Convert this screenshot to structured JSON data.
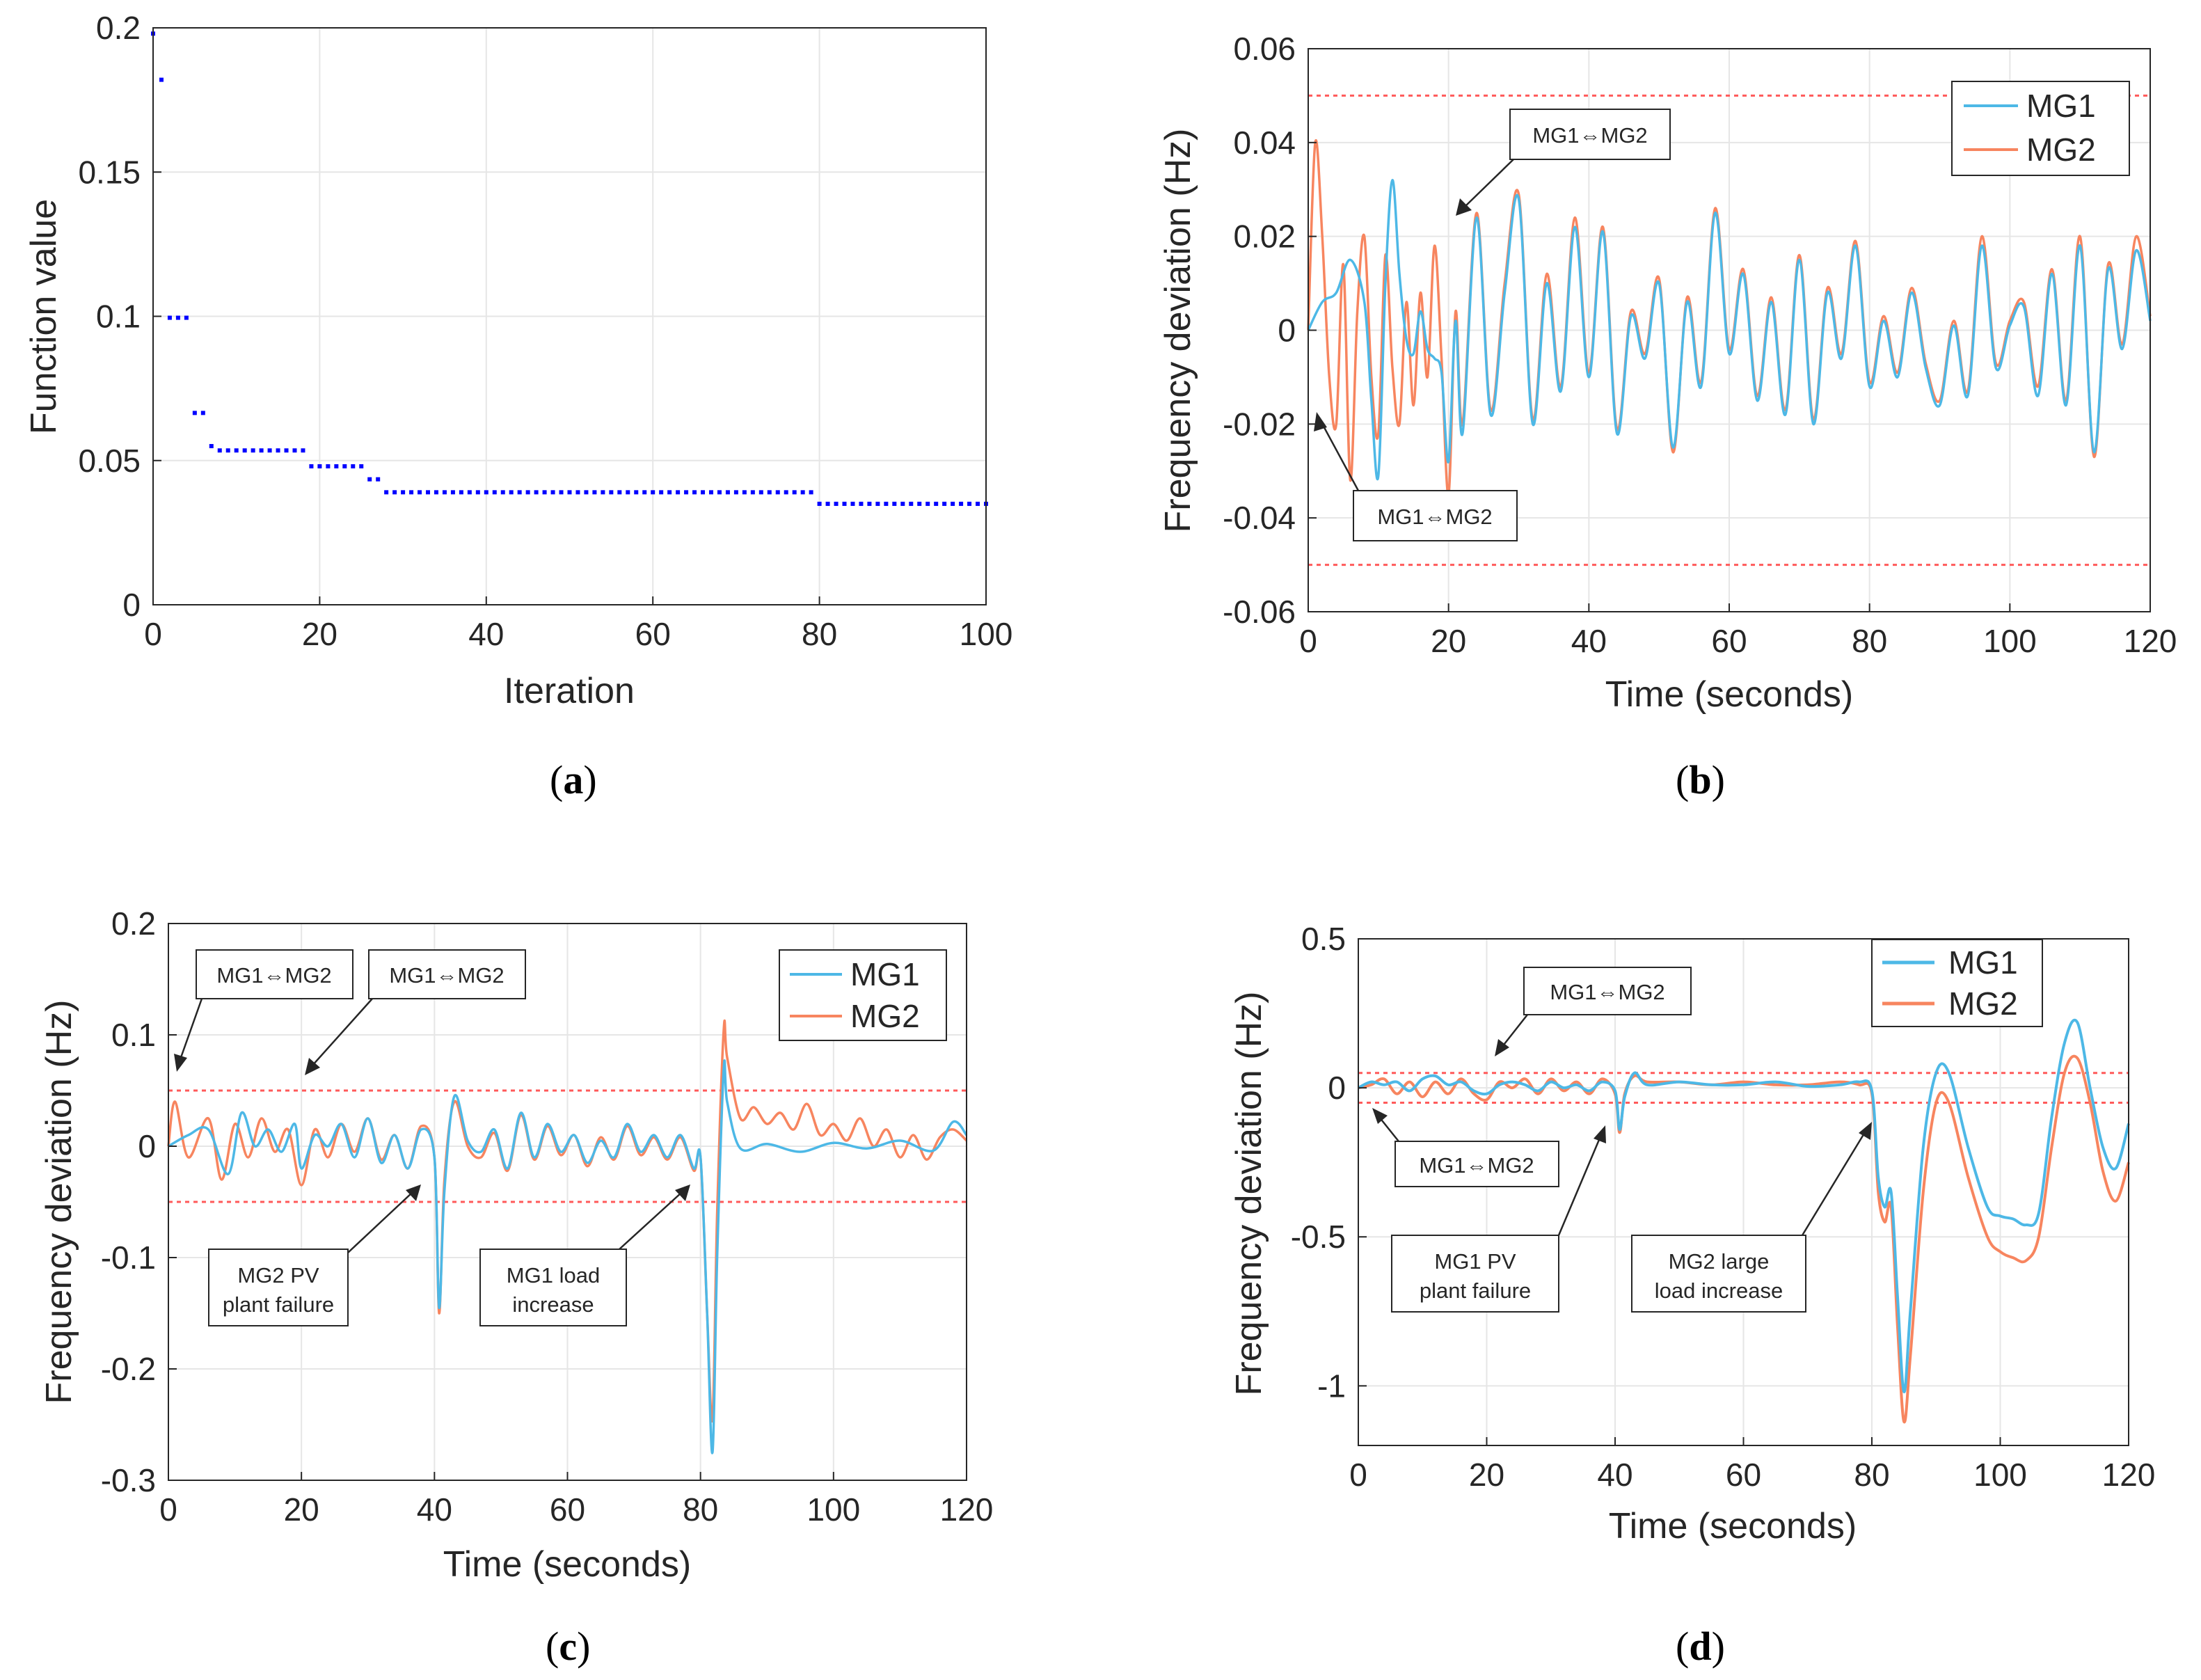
{
  "colors": {
    "mg1": "#4db8e6",
    "mg2": "#f7855f",
    "points": "#0000ff",
    "limit": "#ff5a5a",
    "grid": "#e6e6e6",
    "axis": "#262626"
  },
  "chart_data": [
    {
      "id": "a",
      "type": "scatter",
      "caption": "a",
      "xlabel": "Iteration",
      "ylabel": "Function value",
      "xlim": [
        0,
        100
      ],
      "ylim": [
        0,
        0.2
      ],
      "xticks": [
        "0",
        "20",
        "40",
        "60",
        "80",
        "100"
      ],
      "yticks": [
        "0",
        "0.05",
        "0.1",
        "0.15",
        "0.2"
      ],
      "grid": true,
      "segments": [
        {
          "from": 0,
          "to": 0,
          "value": 0.198
        },
        {
          "from": 1,
          "to": 1,
          "value": 0.182
        },
        {
          "from": 2,
          "to": 4,
          "value": 0.0995
        },
        {
          "from": 5,
          "to": 6,
          "value": 0.0665
        },
        {
          "from": 7,
          "to": 7,
          "value": 0.055
        },
        {
          "from": 8,
          "to": 18,
          "value": 0.0535
        },
        {
          "from": 19,
          "to": 25,
          "value": 0.048
        },
        {
          "from": 26,
          "to": 27,
          "value": 0.0435
        },
        {
          "from": 28,
          "to": 79,
          "value": 0.039
        },
        {
          "from": 80,
          "to": 100,
          "value": 0.035
        }
      ]
    },
    {
      "id": "b",
      "type": "line",
      "caption": "b",
      "xlabel": "Time (seconds)",
      "ylabel": "Frequency deviation (Hz)",
      "xlim": [
        0,
        120
      ],
      "ylim": [
        -0.06,
        0.06
      ],
      "xticks": [
        "0",
        "20",
        "40",
        "60",
        "80",
        "100",
        "120"
      ],
      "yticks": [
        "-0.06",
        "-0.04",
        "-0.02",
        "0",
        "0.02",
        "0.04",
        "0.06"
      ],
      "grid": true,
      "limits": [
        0.05,
        -0.05
      ],
      "legend": {
        "position": "top-right",
        "entries": [
          "MG1",
          "MG2"
        ]
      },
      "series": [
        {
          "name": "MG1",
          "x": [
            0,
            2,
            4,
            6,
            8,
            9,
            10,
            11,
            12,
            13,
            14,
            15,
            16,
            17,
            18,
            19,
            20,
            21,
            22,
            24,
            26,
            28,
            30,
            32,
            34,
            36,
            38,
            40,
            42,
            44,
            46,
            48,
            50,
            52,
            54,
            56,
            58,
            60,
            62,
            64,
            66,
            68,
            70,
            72,
            74,
            76,
            78,
            80,
            82,
            84,
            86,
            88,
            90,
            92,
            94,
            96,
            98,
            100,
            102,
            104,
            106,
            108,
            110,
            112,
            114,
            116,
            118,
            120
          ],
          "y": [
            0,
            0.006,
            0.008,
            0.015,
            0.006,
            -0.015,
            -0.031,
            0.01,
            0.032,
            0.012,
            -0.002,
            -0.005,
            0.004,
            -0.004,
            -0.006,
            -0.009,
            -0.028,
            0.002,
            -0.022,
            0.024,
            -0.018,
            0.008,
            0.028,
            -0.02,
            0.01,
            -0.013,
            0.022,
            -0.01,
            0.021,
            -0.022,
            0.003,
            -0.006,
            0.01,
            -0.025,
            0.006,
            -0.012,
            0.025,
            -0.005,
            0.012,
            -0.015,
            0.006,
            -0.018,
            0.015,
            -0.02,
            0.008,
            -0.006,
            0.018,
            -0.012,
            0.002,
            -0.01,
            0.008,
            -0.008,
            -0.016,
            0.001,
            -0.014,
            0.018,
            -0.008,
            0.001,
            0.005,
            -0.014,
            0.012,
            -0.016,
            0.018,
            -0.026,
            0.013,
            -0.004,
            0.017,
            0.002
          ]
        },
        {
          "name": "MG2",
          "x": [
            0,
            1,
            2,
            3,
            4,
            5,
            6,
            7,
            8,
            9,
            10,
            11,
            12,
            13,
            14,
            15,
            16,
            17,
            18,
            19,
            20,
            21,
            22,
            24,
            26,
            28,
            30,
            32,
            34,
            36,
            38,
            40,
            42,
            44,
            46,
            48,
            50,
            52,
            54,
            56,
            58,
            60,
            62,
            64,
            66,
            68,
            70,
            72,
            74,
            76,
            78,
            80,
            82,
            84,
            86,
            88,
            90,
            92,
            94,
            96,
            98,
            100,
            102,
            104,
            106,
            108,
            110,
            112,
            114,
            116,
            118,
            120
          ],
          "y": [
            0,
            0.04,
            0.02,
            -0.01,
            -0.02,
            0.014,
            -0.032,
            0.004,
            0.02,
            -0.01,
            -0.022,
            0.016,
            -0.008,
            -0.02,
            0.006,
            -0.016,
            0.008,
            -0.01,
            0.018,
            -0.006,
            -0.035,
            0.004,
            -0.02,
            0.025,
            -0.017,
            0.01,
            0.029,
            -0.019,
            0.012,
            -0.012,
            0.024,
            -0.009,
            0.022,
            -0.021,
            0.004,
            -0.005,
            0.011,
            -0.026,
            0.007,
            -0.011,
            0.026,
            -0.004,
            0.013,
            -0.014,
            0.007,
            -0.017,
            0.016,
            -0.019,
            0.009,
            -0.005,
            0.019,
            -0.011,
            0.003,
            -0.009,
            0.009,
            -0.007,
            -0.015,
            0.002,
            -0.013,
            0.02,
            -0.007,
            0.002,
            0.006,
            -0.012,
            0.013,
            -0.015,
            0.02,
            -0.027,
            0.014,
            -0.003,
            0.02,
            0.003
          ]
        }
      ],
      "annotations": [
        "MG1⇔MG2",
        "MG1⇔MG2"
      ]
    },
    {
      "id": "c",
      "type": "line",
      "caption": "c",
      "xlabel": "Time (seconds)",
      "ylabel": "Frequency deviation (Hz)",
      "xlim": [
        0,
        120
      ],
      "ylim": [
        -0.3,
        0.2
      ],
      "xticks": [
        "0",
        "20",
        "40",
        "60",
        "80",
        "100",
        "120"
      ],
      "yticks": [
        "-0.3",
        "-0.2",
        "-0.1",
        "0",
        "0.1",
        "0.2"
      ],
      "grid": true,
      "limits": [
        0.05,
        -0.05
      ],
      "legend": {
        "position": "top-right",
        "entries": [
          "MG1",
          "MG2"
        ]
      },
      "series": [
        {
          "name": "MG1",
          "x": [
            0,
            3,
            6,
            9,
            11,
            13,
            15,
            17,
            19,
            20,
            22,
            24,
            26,
            28,
            30,
            32,
            34,
            36,
            38,
            40,
            40.7,
            41.5,
            43,
            45,
            47,
            49,
            51,
            53,
            55,
            57,
            59,
            61,
            63,
            65,
            67,
            69,
            71,
            73,
            75,
            77,
            79,
            80,
            81,
            81.8,
            82.5,
            83.5,
            84,
            86,
            90,
            95,
            100,
            105,
            110,
            115,
            118,
            120
          ],
          "y": [
            0,
            0.01,
            0.015,
            -0.025,
            0.03,
            0,
            0.015,
            -0.005,
            0.02,
            -0.02,
            0.01,
            0,
            0.02,
            -0.01,
            0.025,
            -0.015,
            0.01,
            -0.02,
            0.015,
            -0.01,
            -0.145,
            -0.04,
            0.045,
            0.005,
            -0.005,
            0.015,
            -0.02,
            0.03,
            -0.01,
            0.02,
            -0.005,
            0.01,
            -0.015,
            0.005,
            -0.01,
            0.02,
            -0.005,
            0.01,
            -0.01,
            0.01,
            -0.02,
            -0.01,
            -0.15,
            -0.275,
            -0.1,
            0.07,
            0.04,
            -0.002,
            0.002,
            -0.005,
            0.003,
            -0.002,
            0.005,
            -0.004,
            0.022,
            0.01
          ]
        },
        {
          "name": "MG2",
          "x": [
            0,
            1,
            3,
            6,
            8,
            10,
            12,
            14,
            16,
            18,
            20,
            22,
            24,
            26,
            28,
            30,
            32,
            34,
            36,
            38,
            40,
            40.7,
            41.5,
            43,
            45,
            47,
            49,
            51,
            53,
            55,
            57,
            59,
            61,
            63,
            65,
            67,
            69,
            71,
            73,
            75,
            77,
            79,
            80,
            81,
            81.8,
            82.5,
            83.5,
            84,
            86,
            88,
            90,
            92,
            94,
            96,
            98,
            100,
            102,
            104,
            106,
            108,
            110,
            112,
            114,
            116,
            118,
            120
          ],
          "y": [
            0,
            0.04,
            -0.01,
            0.025,
            -0.03,
            0.02,
            -0.01,
            0.025,
            -0.005,
            0.015,
            -0.035,
            0.015,
            -0.01,
            0.02,
            -0.005,
            0.025,
            -0.012,
            0.01,
            -0.02,
            0.018,
            -0.01,
            -0.15,
            -0.03,
            0.04,
            0,
            -0.01,
            0.012,
            -0.022,
            0.028,
            -0.012,
            0.018,
            -0.008,
            0.01,
            -0.018,
            0.008,
            -0.012,
            0.018,
            -0.008,
            0.008,
            -0.012,
            0.008,
            -0.022,
            -0.01,
            -0.15,
            -0.245,
            -0.06,
            0.105,
            0.08,
            0.025,
            0.035,
            0.02,
            0.03,
            0.015,
            0.038,
            0.01,
            0.02,
            0.005,
            0.025,
            0,
            0.015,
            -0.01,
            0.01,
            -0.012,
            0.008,
            0.015,
            0.005
          ]
        }
      ],
      "annotations": [
        "MG1⇔MG2",
        "MG1⇔MG2",
        "MG2 PV",
        "plant failure",
        "MG1 load",
        "increase"
      ]
    },
    {
      "id": "d",
      "type": "line",
      "caption": "d",
      "xlabel": "Time (seconds)",
      "ylabel": "Frequency deviation (Hz)",
      "xlim": [
        0,
        120
      ],
      "ylim": [
        -1.2,
        0.5
      ],
      "xticks": [
        "0",
        "20",
        "40",
        "60",
        "80",
        "100",
        "120"
      ],
      "yticks": [
        "-1",
        "-0.5",
        "0",
        "0.5"
      ],
      "ytick_values": [
        -1,
        -0.5,
        0,
        0.5
      ],
      "grid": true,
      "limits": [
        0.05,
        -0.05
      ],
      "legend": {
        "position": "top-right",
        "entries": [
          "MG1",
          "MG2"
        ]
      },
      "series": [
        {
          "name": "MG1",
          "x": [
            0,
            2,
            4,
            6,
            8,
            10,
            12,
            14,
            16,
            18,
            20,
            22,
            24,
            26,
            28,
            30,
            32,
            34,
            36,
            38,
            40,
            40.7,
            41.5,
            43,
            45,
            50,
            55,
            60,
            65,
            70,
            75,
            78,
            80,
            81,
            82,
            83,
            84,
            85,
            86,
            88,
            90,
            92,
            95,
            98,
            100,
            102,
            104,
            106,
            108,
            110,
            112,
            114,
            116,
            118,
            120
          ],
          "y": [
            0,
            0.02,
            0.01,
            0.02,
            -0.01,
            0.03,
            0.04,
            0.01,
            0.02,
            -0.01,
            -0.02,
            0.01,
            0.02,
            0.01,
            -0.01,
            0.02,
            0,
            0.01,
            -0.01,
            0.02,
            -0.01,
            -0.14,
            -0.03,
            0.05,
            0.01,
            0.02,
            0.01,
            0.01,
            0.02,
            0.005,
            0.01,
            0.02,
            -0.01,
            -0.3,
            -0.4,
            -0.35,
            -0.7,
            -1.02,
            -0.75,
            -0.2,
            0.05,
            0.05,
            -0.2,
            -0.4,
            -0.43,
            -0.44,
            -0.46,
            -0.42,
            -0.1,
            0.15,
            0.22,
            0,
            -0.2,
            -0.27,
            -0.12
          ]
        },
        {
          "name": "MG2",
          "x": [
            0,
            2,
            4,
            6,
            8,
            10,
            12,
            14,
            16,
            18,
            20,
            22,
            24,
            26,
            28,
            30,
            32,
            34,
            36,
            38,
            40,
            40.7,
            41.5,
            43,
            45,
            50,
            55,
            60,
            65,
            70,
            75,
            78,
            80,
            81,
            82,
            83,
            84,
            85,
            86,
            88,
            90,
            92,
            95,
            98,
            100,
            102,
            104,
            106,
            108,
            110,
            112,
            114,
            116,
            118,
            120
          ],
          "y": [
            0,
            0.01,
            0.03,
            -0.02,
            0.02,
            -0.03,
            0.02,
            -0.02,
            0.03,
            -0.02,
            -0.04,
            0.02,
            0,
            0.03,
            -0.02,
            0.03,
            -0.01,
            0.02,
            -0.02,
            0.03,
            -0.02,
            -0.15,
            -0.02,
            0.04,
            0.02,
            0.02,
            0.01,
            0.02,
            0.01,
            0.01,
            0.02,
            0.01,
            -0.02,
            -0.35,
            -0.45,
            -0.4,
            -0.8,
            -1.12,
            -0.9,
            -0.35,
            -0.05,
            -0.05,
            -0.3,
            -0.5,
            -0.55,
            -0.57,
            -0.58,
            -0.5,
            -0.2,
            0.05,
            0.1,
            -0.05,
            -0.28,
            -0.38,
            -0.25
          ]
        }
      ],
      "annotations": [
        "MG1⇔MG2",
        "MG1⇔MG2",
        "MG1 PV",
        "plant failure",
        "MG2 large",
        "load increase"
      ]
    }
  ]
}
